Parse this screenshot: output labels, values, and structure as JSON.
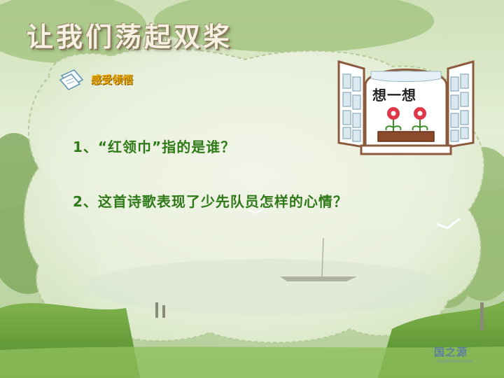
{
  "slide": {
    "title": "让我们荡起双桨",
    "section_label": "感受领悟",
    "think_label": "想一想",
    "questions": [
      "1、“红领巾”指的是谁？",
      "2、这首诗歌表现了少先队员怎样的心情？"
    ],
    "logo": {
      "name": "国之源",
      "sub": "GuoZhiYuan.com"
    }
  },
  "colors": {
    "question_text": "#2f7a18",
    "section_label": "#e8a800",
    "frame": "#8b5a3c",
    "background": "#e4eed6"
  },
  "icons": {
    "section": "paper-note-icon",
    "window": "window-flowers-icon"
  }
}
